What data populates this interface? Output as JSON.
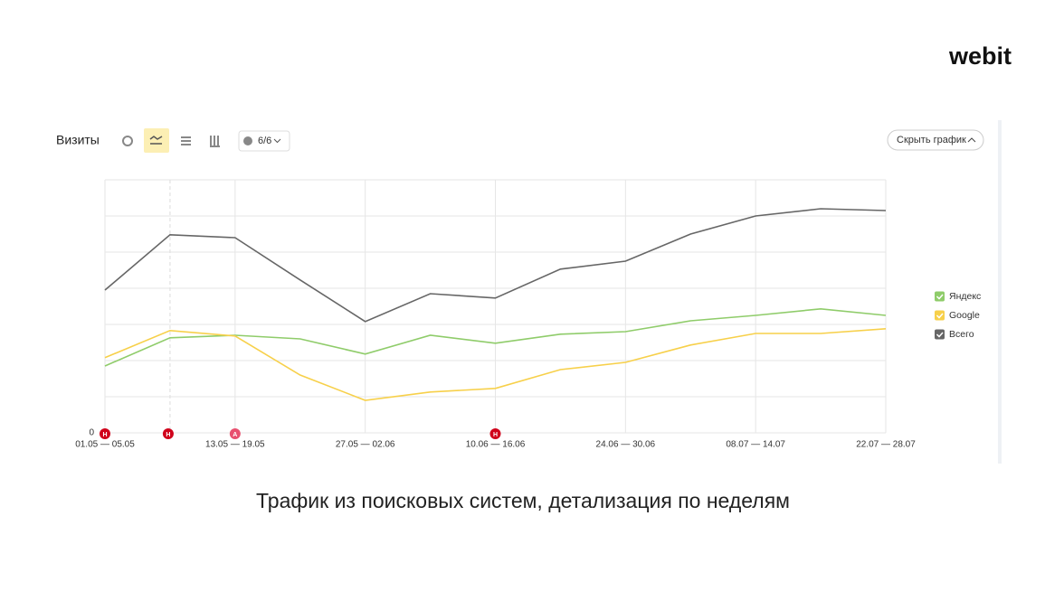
{
  "logo": "webit",
  "toolbar": {
    "title": "Визиты",
    "annotations_count": "6/6",
    "hide_button": "Скрыть график"
  },
  "caption": "Трафик из поисковых систем, детализация по неделям",
  "event_markers": [
    "Н",
    "Н",
    "А",
    "Н"
  ],
  "chart_data": {
    "type": "line",
    "categories": [
      "01.05 — 05.05",
      null,
      "13.05 — 19.05",
      null,
      "27.05 — 02.06",
      null,
      "10.06 — 16.06",
      null,
      "24.06 — 30.06",
      null,
      "08.07 — 14.07",
      null,
      "22.07 — 28.07"
    ],
    "series": [
      {
        "name": "Яндекс",
        "color": "#8fcc6a",
        "values": [
          1.85,
          2.63,
          2.7,
          2.6,
          2.18,
          2.7,
          2.48,
          2.73,
          2.8,
          3.1,
          3.25,
          3.43,
          3.25
        ]
      },
      {
        "name": "Google",
        "color": "#f7d04a",
        "values": [
          2.08,
          2.83,
          2.68,
          1.6,
          0.9,
          1.13,
          1.23,
          1.75,
          1.95,
          2.43,
          2.75,
          2.75,
          2.88
        ]
      },
      {
        "name": "Всего",
        "color": "#666666",
        "values": [
          3.95,
          5.48,
          5.4,
          4.23,
          3.08,
          3.85,
          3.73,
          4.53,
          4.75,
          5.5,
          6.0,
          6.2,
          6.15
        ]
      }
    ],
    "ylim": [
      0,
      7
    ],
    "yticks": [
      0,
      {
        "value": 1,
        "label": null
      },
      {
        "value": 2,
        "label": null
      },
      {
        "value": 3,
        "label": null
      },
      {
        "value": 4,
        "label": null
      },
      {
        "value": 5,
        "label": null
      },
      {
        "value": 6,
        "label": null
      },
      {
        "value": 7,
        "label": null
      }
    ],
    "grid": true,
    "legend": "right"
  }
}
